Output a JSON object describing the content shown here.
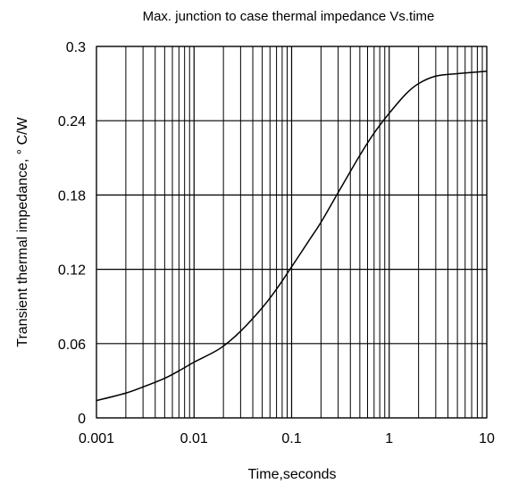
{
  "chart_data": {
    "type": "line",
    "title": "Max. junction to case thermal impedance Vs.time",
    "xlabel": "Time,seconds",
    "ylabel": "Transient thermal impedance, ° C/W",
    "x_scale": "log",
    "xlim": [
      0.001,
      10
    ],
    "ylim": [
      0,
      0.3
    ],
    "grid": true,
    "x_ticks": [
      "0.001",
      "0.01",
      "0.1",
      "1",
      "10"
    ],
    "y_ticks": [
      "0",
      "0.06",
      "0.12",
      "0.18",
      "0.24",
      "0.3"
    ],
    "series": [
      {
        "x": [
          0.001,
          0.002,
          0.003,
          0.005,
          0.007,
          0.01,
          0.015,
          0.02,
          0.03,
          0.05,
          0.07,
          0.1,
          0.15,
          0.2,
          0.3,
          0.5,
          0.7,
          1,
          1.5,
          2,
          3,
          5,
          7,
          10
        ],
        "values": [
          0.014,
          0.02,
          0.025,
          0.032,
          0.038,
          0.045,
          0.052,
          0.058,
          0.07,
          0.089,
          0.104,
          0.122,
          0.143,
          0.158,
          0.182,
          0.212,
          0.23,
          0.246,
          0.262,
          0.27,
          0.276,
          0.278,
          0.279,
          0.28
        ]
      }
    ]
  }
}
